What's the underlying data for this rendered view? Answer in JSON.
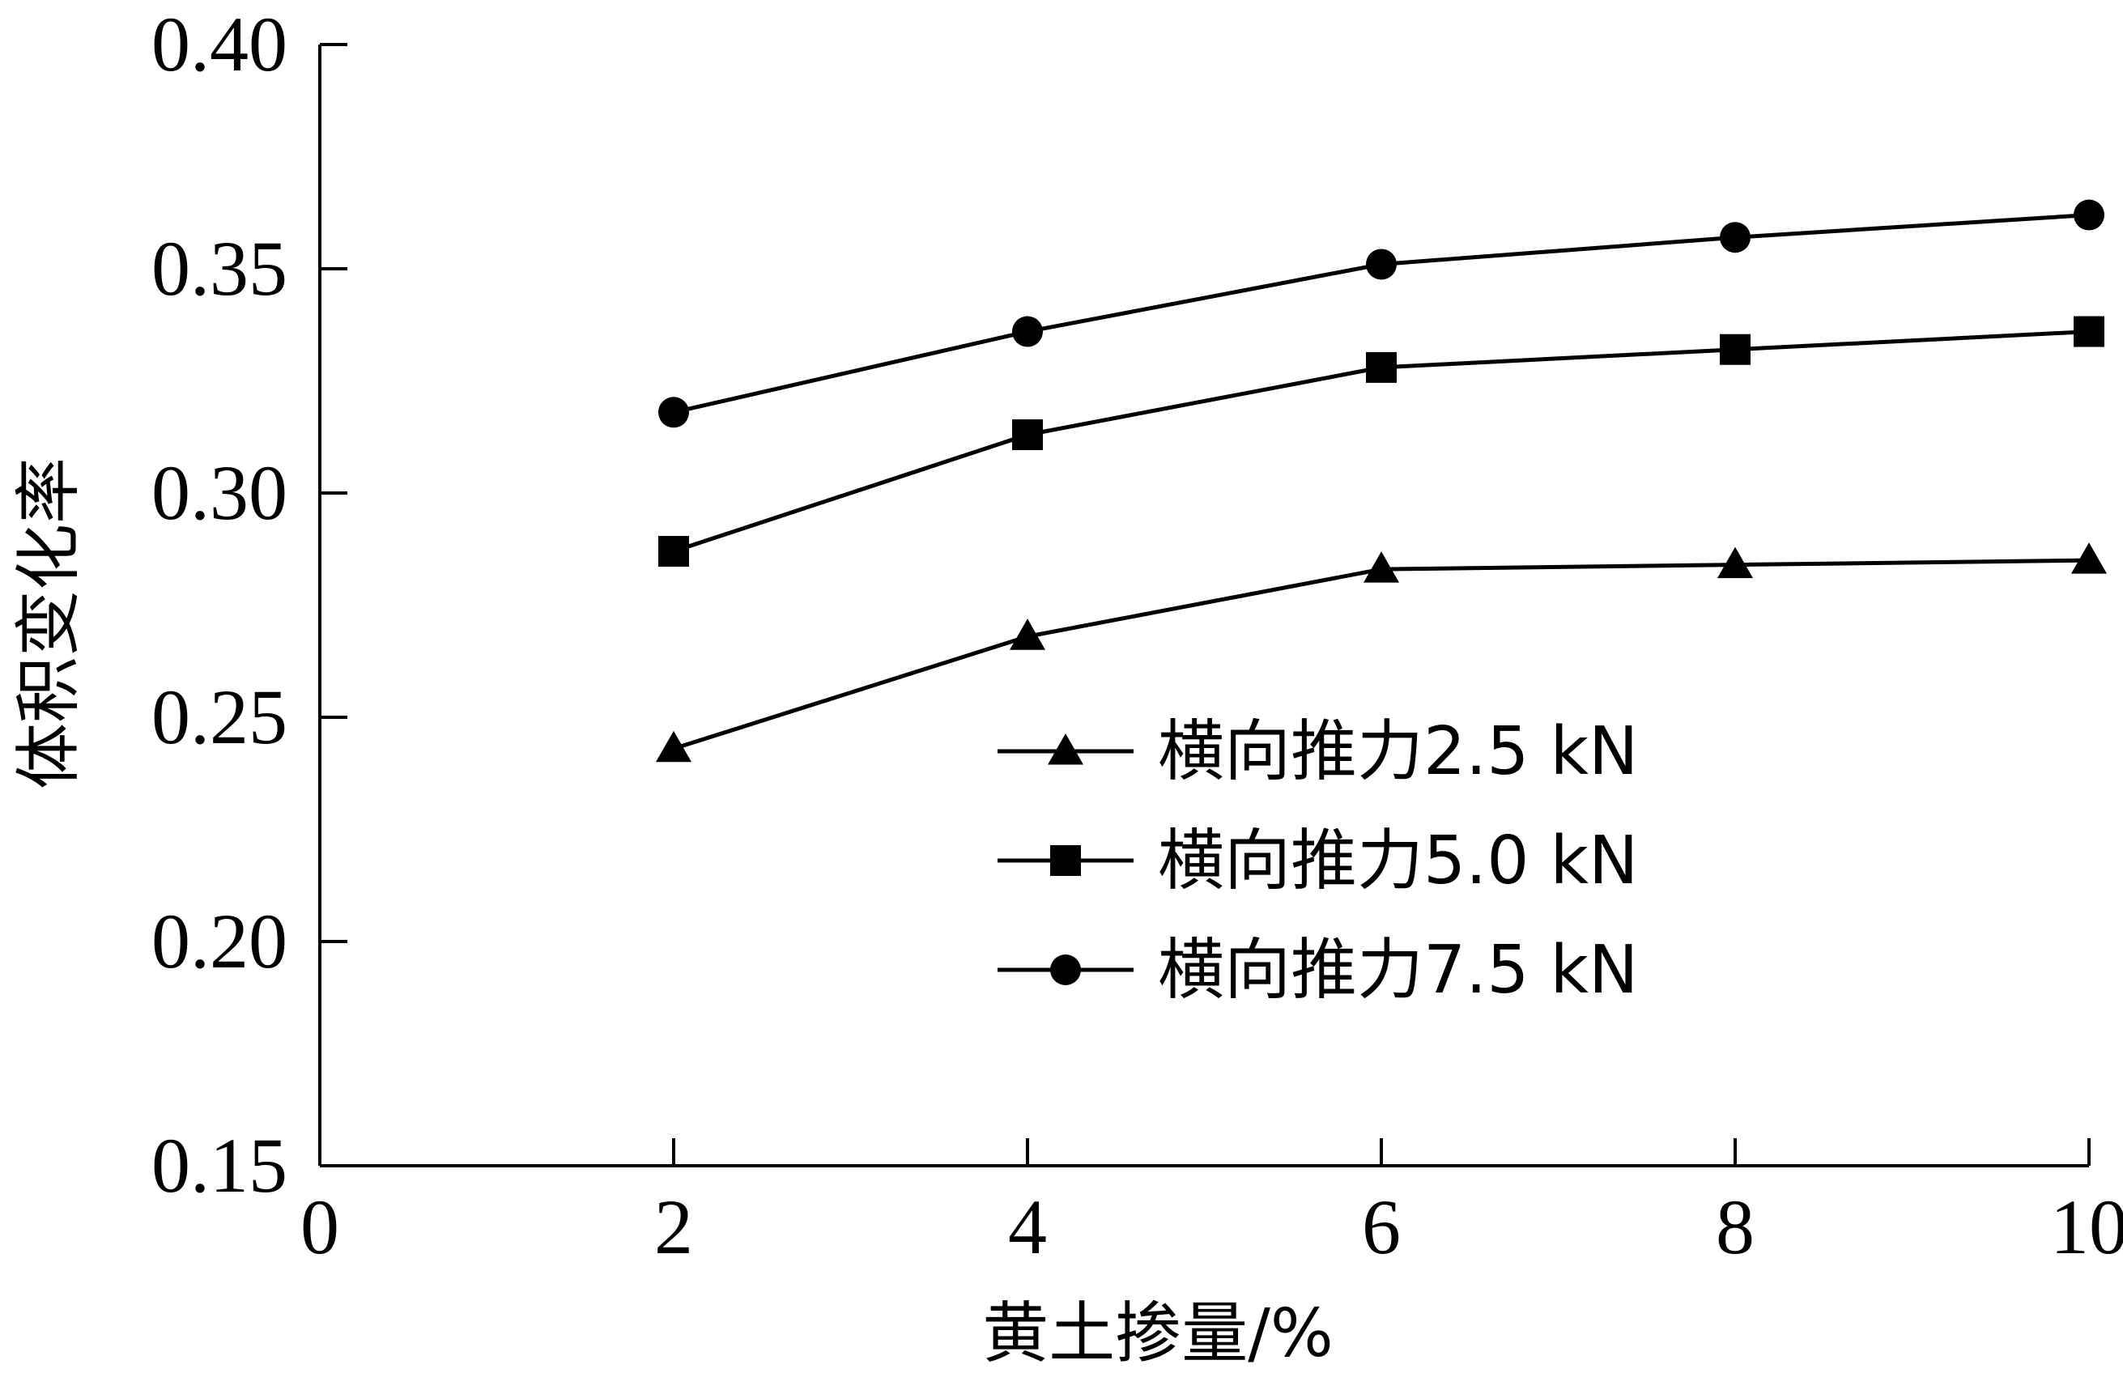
{
  "chart_data": {
    "type": "line",
    "xlabel": "黄土掺量/%",
    "ylabel": "体积变化率",
    "xlim": [
      0,
      10
    ],
    "ylim": [
      0.15,
      0.4
    ],
    "xticks": [
      0,
      2,
      4,
      6,
      8,
      10
    ],
    "yticks": [
      0.15,
      0.2,
      0.25,
      0.3,
      0.35,
      0.4
    ],
    "ytick_labels": [
      "0.15",
      "0.20",
      "0.25",
      "0.30",
      "0.35",
      "0.40"
    ],
    "xtick_labels": [
      "0",
      "2",
      "4",
      "6",
      "8",
      "10"
    ],
    "grid": false,
    "legend_position": "center-right",
    "x": [
      2,
      4,
      6,
      8,
      10
    ],
    "series": [
      {
        "name": "横向推力2.5 kN",
        "marker": "triangle",
        "values": [
          0.243,
          0.268,
          0.283,
          0.284,
          0.285
        ]
      },
      {
        "name": "横向推力5.0 kN",
        "marker": "square",
        "values": [
          0.287,
          0.313,
          0.328,
          0.332,
          0.336
        ]
      },
      {
        "name": "横向推力7.5 kN",
        "marker": "circle",
        "values": [
          0.318,
          0.336,
          0.351,
          0.357,
          0.362
        ]
      }
    ],
    "colors": {
      "line": "#000000",
      "axis": "#000000"
    }
  }
}
